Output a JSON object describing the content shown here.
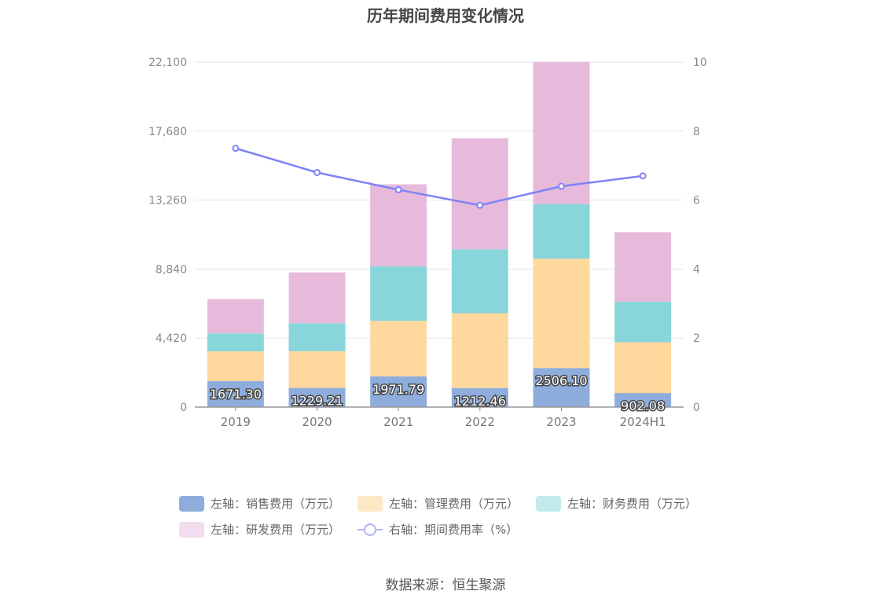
{
  "chart_data": {
    "type": "bar",
    "title": "历年期间费用变化情况",
    "categories": [
      "2019",
      "2020",
      "2021",
      "2022",
      "2023",
      "2024H1"
    ],
    "stacked": true,
    "series": [
      {
        "name": "左轴：销售费用（万元）",
        "axis": "left",
        "values": [
          1671.3,
          1229.21,
          1971.79,
          1212.46,
          2506.1,
          902.08
        ],
        "labels": [
          "1671.30",
          "1229.21",
          "1971.79",
          "1212.46",
          "2506.10",
          "902.08"
        ],
        "color": "#8eaddc",
        "legend_color": "#8eaddc"
      },
      {
        "name": "左轴：管理费用（万元）",
        "axis": "left",
        "values": [
          1900,
          2350,
          3550,
          4800,
          7000,
          3250
        ],
        "color": "#fed89c",
        "legend_color": "#fde8c6"
      },
      {
        "name": "左轴：财务费用（万元）",
        "axis": "left",
        "values": [
          1150,
          1800,
          3500,
          4100,
          3500,
          2600
        ],
        "color": "#88d6da",
        "legend_color": "#c2eaec"
      },
      {
        "name": "左轴：研发费用（万元）",
        "axis": "left",
        "values": [
          2200,
          3250,
          5250,
          7100,
          9100,
          4450
        ],
        "color": "#e7badb",
        "legend_color": "#f2dced"
      }
    ],
    "line_series": {
      "name": "右轴：期间费用率（%）",
      "axis": "right",
      "values": [
        7.5,
        6.8,
        6.3,
        5.85,
        6.4,
        6.7
      ],
      "color": "#7f83f7"
    },
    "y_left": {
      "ticks": [
        "0",
        "4,420",
        "8,840",
        "13,260",
        "17,680",
        "22,100"
      ],
      "min": 0,
      "max": 22100
    },
    "y_right": {
      "ticks": [
        "0",
        "2",
        "4",
        "6",
        "8",
        "10"
      ],
      "min": 0,
      "max": 10
    },
    "source": "数据来源：恒生聚源"
  }
}
